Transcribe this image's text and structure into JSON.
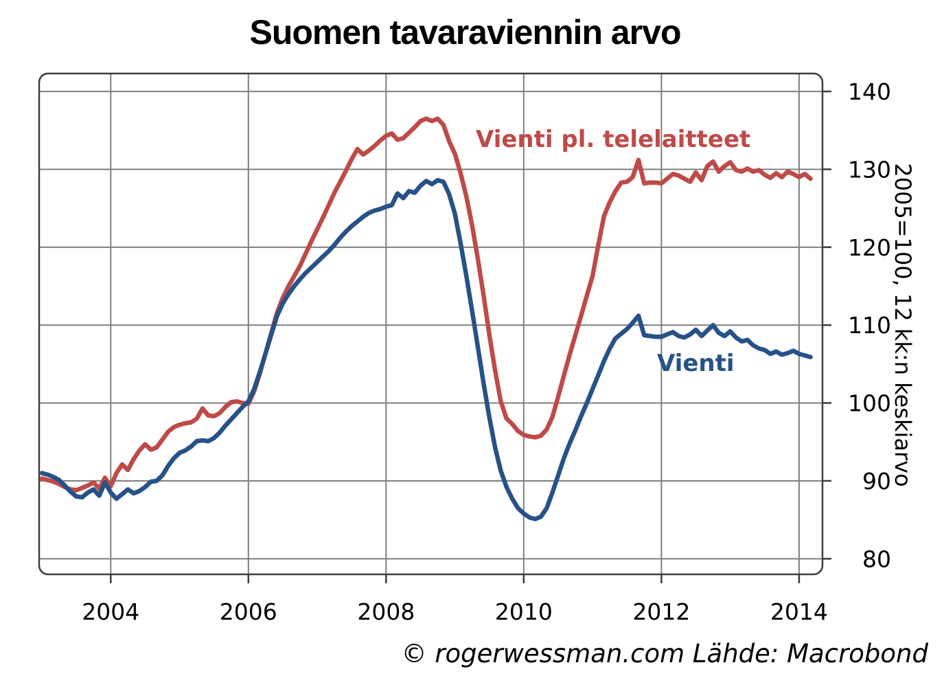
{
  "title": "Suomen tavaraviennin arvo",
  "footer": "© rogerwessman.com Lähde: Macrobond",
  "y_axis_unit_label": "2005=100, 12 kk:n keskiarvo",
  "colors": {
    "red_series": "#be4b48",
    "blue_series": "#265288",
    "grid": "#7f7f7f",
    "border": "#3d3d3d",
    "text": "#000000"
  },
  "chart_data": {
    "type": "line",
    "title": "Suomen tavaraviennin arvo",
    "xlabel": "",
    "ylabel": "2005=100, 12 kk:n keskiarvo",
    "grid": true,
    "legend_position": "inline-labels",
    "x_domain": [
      2002.96,
      2014.34
    ],
    "y_domain": [
      78.0,
      142.3
    ],
    "x_ticks": [
      2004,
      2006,
      2008,
      2010,
      2012,
      2014
    ],
    "y_ticks": [
      80,
      90,
      100,
      110,
      120,
      130,
      140
    ],
    "x_start": 2003.0,
    "x_step": 0.0833333,
    "x_unit": "year (monthly points)",
    "series": [
      {
        "name": "Vienti pl. telelaitteet",
        "color": "#be4b48",
        "values": [
          90.3,
          90.1,
          89.9,
          89.6,
          89.2,
          88.9,
          88.8,
          89.1,
          89.4,
          89.8,
          89.0,
          90.4,
          89.3,
          91.0,
          92.1,
          91.4,
          92.8,
          93.9,
          94.7,
          94.0,
          94.3,
          95.3,
          96.3,
          96.9,
          97.2,
          97.4,
          97.5,
          98.0,
          99.3,
          98.4,
          98.3,
          98.7,
          99.5,
          100.1,
          100.2,
          100.0,
          99.9,
          101.5,
          103.8,
          106.4,
          109.0,
          111.6,
          113.5,
          115.0,
          116.3,
          117.6,
          119.2,
          120.8,
          122.3,
          123.8,
          125.4,
          127.0,
          128.4,
          129.8,
          131.3,
          132.6,
          131.9,
          132.4,
          133.0,
          133.7,
          134.3,
          134.6,
          133.8,
          134.0,
          134.7,
          135.4,
          136.2,
          136.5,
          136.2,
          136.5,
          135.7,
          133.6,
          132.0,
          129.5,
          126.5,
          122.8,
          118.5,
          113.8,
          108.8,
          104.2,
          100.2,
          98.0,
          97.3,
          96.4,
          95.9,
          95.7,
          95.6,
          95.8,
          96.6,
          98.2,
          100.8,
          103.5,
          106.2,
          108.7,
          111.2,
          113.8,
          116.3,
          120.3,
          124.0,
          125.8,
          127.2,
          128.3,
          128.4,
          129.0,
          131.2,
          128.2,
          128.3,
          128.3,
          128.2,
          128.8,
          129.4,
          129.2,
          128.8,
          128.4,
          129.6,
          128.6,
          130.4,
          131.0,
          129.7,
          130.4,
          130.9,
          129.9,
          129.7,
          130.1,
          129.7,
          129.9,
          129.3,
          128.9,
          129.5,
          129.0,
          129.7,
          129.4,
          129.0,
          129.4,
          128.8
        ]
      },
      {
        "name": "Vienti",
        "color": "#265288",
        "values": [
          91.0,
          90.8,
          90.5,
          90.1,
          89.4,
          88.6,
          88.0,
          87.9,
          88.5,
          88.9,
          88.1,
          89.8,
          88.5,
          87.7,
          88.3,
          88.9,
          88.4,
          88.7,
          89.2,
          89.9,
          90.0,
          90.7,
          91.9,
          92.9,
          93.6,
          93.9,
          94.4,
          95.1,
          95.2,
          95.1,
          95.5,
          96.2,
          97.1,
          97.9,
          98.7,
          99.5,
          100.2,
          101.8,
          104.0,
          106.4,
          108.8,
          111.2,
          112.8,
          114.0,
          115.0,
          115.9,
          116.7,
          117.4,
          118.1,
          118.8,
          119.5,
          120.3,
          121.2,
          122.0,
          122.7,
          123.3,
          123.9,
          124.4,
          124.7,
          124.9,
          125.2,
          125.4,
          126.9,
          126.3,
          127.2,
          127.0,
          127.9,
          128.5,
          128.1,
          128.6,
          128.4,
          126.8,
          124.3,
          120.5,
          116.3,
          111.8,
          107.2,
          102.5,
          98.2,
          94.3,
          91.3,
          89.2,
          87.7,
          86.5,
          85.8,
          85.3,
          85.1,
          85.4,
          86.5,
          88.5,
          90.7,
          92.9,
          94.8,
          96.5,
          98.3,
          100.0,
          101.8,
          103.6,
          105.4,
          107.0,
          108.3,
          108.9,
          109.5,
          110.3,
          111.2,
          108.7,
          108.6,
          108.5,
          108.5,
          108.8,
          109.1,
          108.6,
          108.4,
          108.8,
          109.4,
          108.6,
          109.3,
          110.0,
          109.0,
          108.6,
          109.2,
          108.4,
          107.9,
          108.1,
          107.4,
          107.0,
          106.8,
          106.3,
          106.6,
          106.2,
          106.4,
          106.7,
          106.3,
          106.1,
          105.9
        ]
      }
    ]
  }
}
